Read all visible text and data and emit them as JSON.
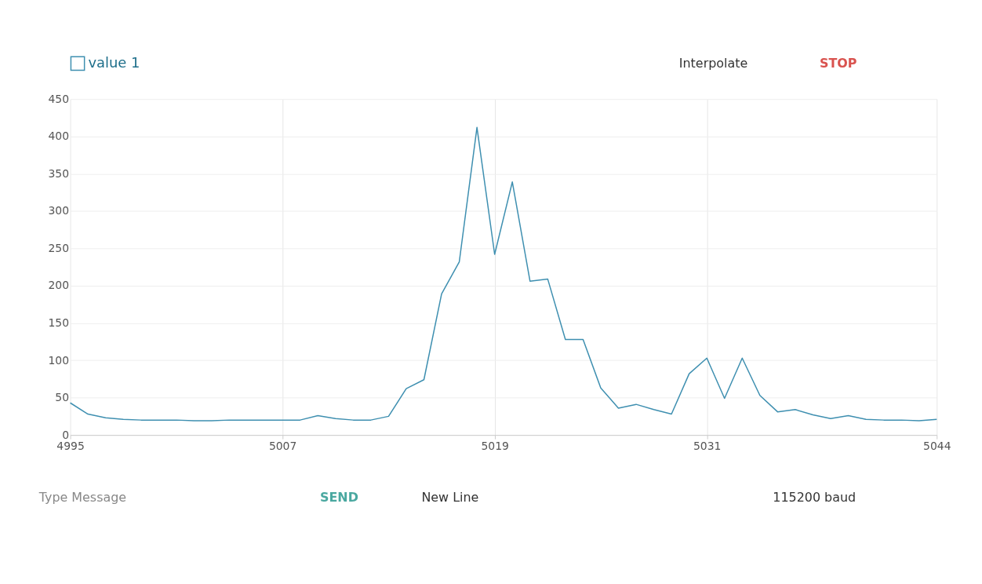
{
  "chart_data": {
    "type": "line",
    "x": [
      4995,
      4996,
      4997,
      4998,
      4999,
      5000,
      5001,
      5002,
      5003,
      5004,
      5005,
      5006,
      5007,
      5008,
      5009,
      5010,
      5011,
      5012,
      5013,
      5014,
      5015,
      5016,
      5017,
      5018,
      5019,
      5020,
      5021,
      5022,
      5023,
      5024,
      5025,
      5026,
      5027,
      5028,
      5029,
      5030,
      5031,
      5032,
      5033,
      5034,
      5035,
      5036,
      5037,
      5038,
      5039,
      5040,
      5041,
      5042,
      5043,
      5044
    ],
    "series": [
      {
        "name": "value 1",
        "color": "#3e8fb0",
        "values": [
          43,
          28,
          23,
          21,
          20,
          20,
          20,
          19,
          19,
          20,
          20,
          20,
          20,
          20,
          26,
          22,
          20,
          20,
          25,
          62,
          74,
          189,
          232,
          412,
          242,
          339,
          206,
          209,
          128,
          128,
          63,
          36,
          41,
          34,
          28,
          82,
          103,
          49,
          103,
          53,
          31,
          34,
          27,
          22,
          26,
          21,
          20,
          20,
          19,
          21
        ]
      }
    ],
    "xlim": [
      4995,
      5044
    ],
    "xticks": [
      4995,
      5007,
      5019,
      5031,
      5044
    ],
    "ylim": [
      0,
      450
    ],
    "yticks": [
      0,
      50,
      100,
      150,
      200,
      250,
      300,
      350,
      400,
      450
    ],
    "grid": true,
    "legend": "top left",
    "marker": "none",
    "line_style": "solid",
    "annotations": [
      "Interpolate",
      "STOP",
      "Type Message",
      "SEND",
      "New Line",
      "115200 baud"
    ]
  }
}
